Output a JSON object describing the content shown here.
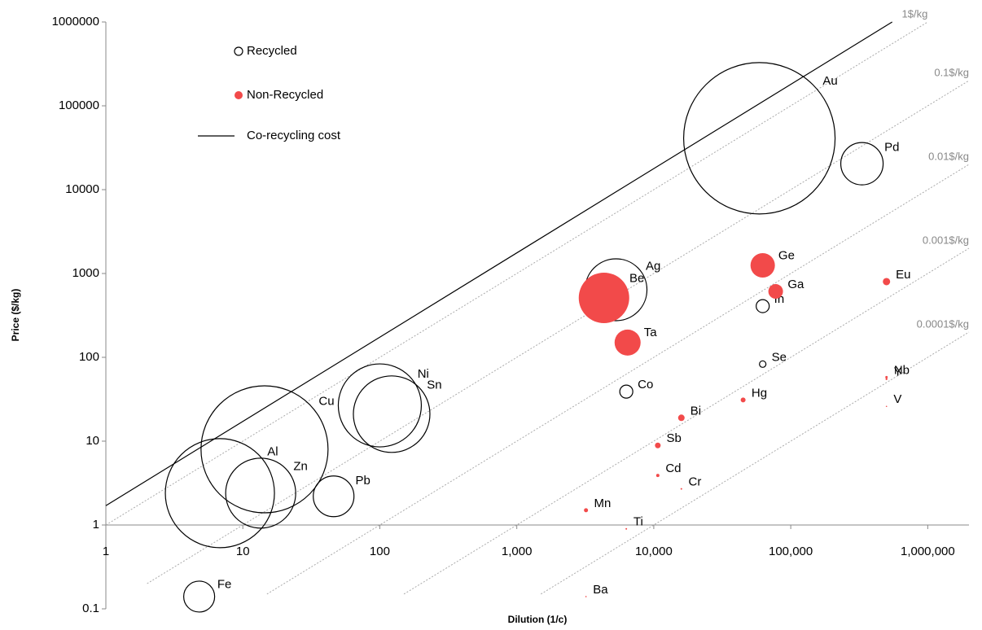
{
  "chart_data": {
    "type": "bubble",
    "x_label": "Dilution (1/c)",
    "y_label": "Price ($/kg)",
    "log_x": true,
    "log_y": true,
    "legend": "upper left",
    "xlim": [
      1,
      2000000
    ],
    "ylim": [
      0.1,
      1000000
    ],
    "xticks": [
      1,
      10,
      100,
      {
        "value": 1000,
        "label": "1,000"
      },
      {
        "value": 10000,
        "label": "10,000"
      },
      {
        "value": 100000,
        "label": "100,000"
      },
      {
        "value": 1000000,
        "label": "1,000,000"
      }
    ],
    "yticks": [
      0.1,
      1,
      10,
      100,
      1000,
      10000,
      100000,
      1000000
    ],
    "series": [
      {
        "name": "Recycled",
        "color": "#000000",
        "filled": false,
        "labels": [
          "Fe",
          "Al",
          "Cu",
          "Zn",
          "Pb",
          "Ni",
          "Sn",
          "Au",
          "Pd",
          "Ag",
          "Co",
          "In",
          "Se"
        ],
        "x": [
          4.8,
          6.8,
          14.4,
          13.5,
          46,
          100,
          122,
          59000,
          331000,
          5300,
          6300,
          62400,
          62400
        ],
        "values": [
          0.14,
          2.4,
          8,
          2.4,
          2.2,
          26.7,
          21,
          41000,
          20400,
          640,
          39,
          408,
          83
        ],
        "sizes": [
          19,
          67,
          78,
          43,
          25,
          51,
          47,
          93,
          26,
          38,
          8,
          8,
          4
        ]
      },
      {
        "name": "Non-Recycled",
        "color": "#f24a4a",
        "filled": true,
        "labels": [
          "Be",
          "Ta",
          "Ge",
          "Ga",
          "Eu",
          "Nb",
          "Y",
          "V",
          "Hg",
          "Bi",
          "Sb",
          "Cd",
          "Cr",
          "Mn",
          "Ti",
          "Ba"
        ],
        "x": [
          4330,
          6440,
          62400,
          77600,
          500000,
          500000,
          500000,
          500000,
          44900,
          15900,
          10700,
          10700,
          15900,
          3200,
          6300,
          3200
        ],
        "values": [
          512,
          150,
          1250,
          611,
          800,
          58,
          55,
          26,
          31,
          19,
          8.9,
          3.9,
          2.7,
          1.5,
          0.9,
          0.14
        ],
        "sizes": [
          31,
          16,
          15,
          9,
          4.5,
          1.5,
          1.2,
          0.8,
          3,
          4,
          3.5,
          2,
          1,
          2.5,
          1,
          0.8
        ]
      }
    ],
    "lines": [
      {
        "name": "Co-recycling cost",
        "color": "#000000",
        "x": [
          1,
          550000
        ],
        "values": [
          1.7,
          1000000
        ]
      }
    ],
    "reference_lines": [
      {
        "name": "1$/kg",
        "color": "#aaaaaa",
        "x": [
          1,
          1000000
        ],
        "values": [
          1,
          1000000
        ]
      },
      {
        "name": "0.1$/kg",
        "color": "#aaaaaa",
        "x": [
          2,
          2000000
        ],
        "values": [
          0.2,
          200000
        ]
      },
      {
        "name": "0.01$/kg",
        "color": "#aaaaaa",
        "x": [
          15,
          2000000
        ],
        "values": [
          0.15,
          20000
        ]
      },
      {
        "name": "0.001$/kg",
        "color": "#aaaaaa",
        "x": [
          150,
          2000000
        ],
        "values": [
          0.15,
          2000
        ]
      },
      {
        "name": "0.0001$/kg",
        "color": "#aaaaaa",
        "x": [
          1500,
          2000000
        ],
        "values": [
          0.15,
          200
        ]
      }
    ]
  }
}
